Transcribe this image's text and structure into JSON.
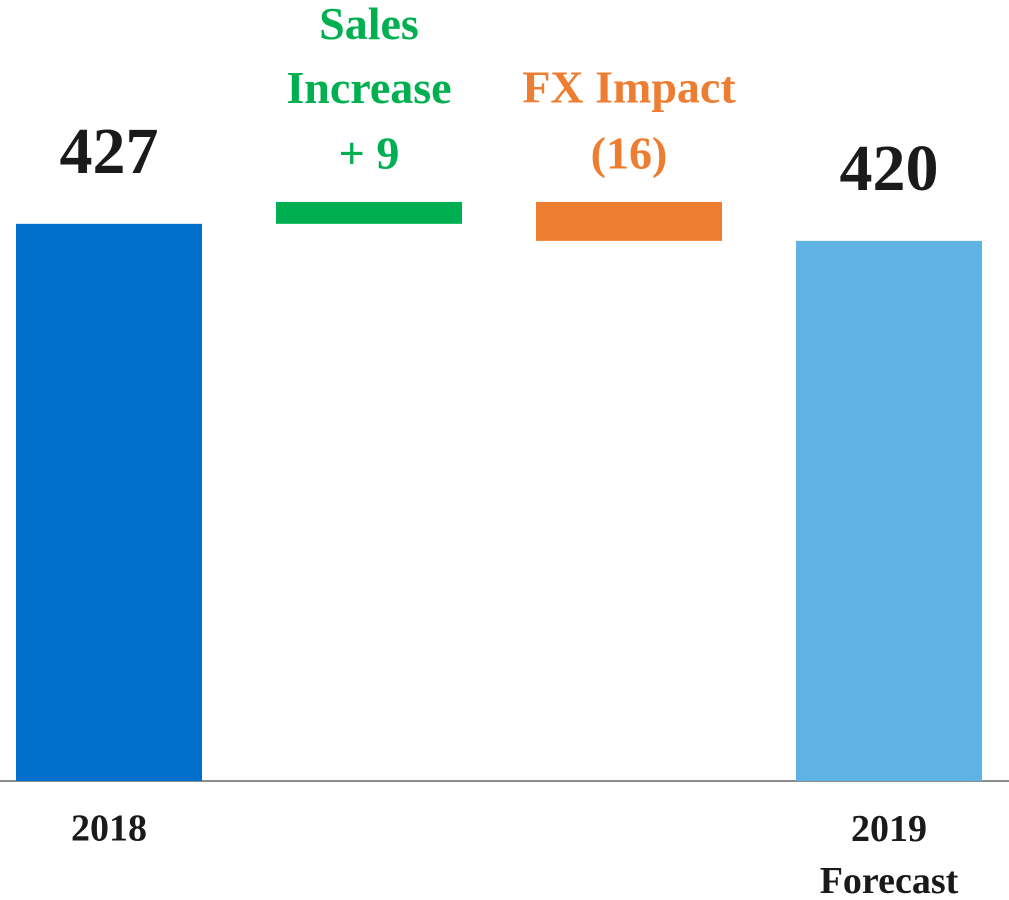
{
  "chart_data": {
    "type": "waterfall",
    "categories": [
      "2018",
      "Sales Increase",
      "FX Impact",
      "2019 Forecast"
    ],
    "values": [
      427,
      9,
      -16,
      420
    ],
    "value_labels": [
      "427",
      "+ 9",
      "(16)",
      "420"
    ],
    "measure": [
      "absolute",
      "relative",
      "relative",
      "total"
    ],
    "colors": [
      "#0070cc",
      "#00b050",
      "#ed7d31",
      "#5fb3e4"
    ],
    "ylim": [
      198,
      519
    ]
  }
}
